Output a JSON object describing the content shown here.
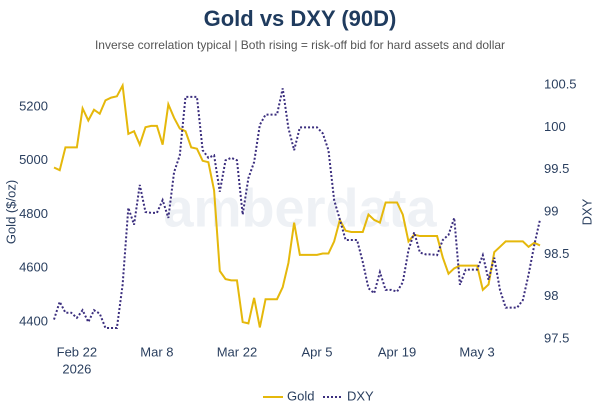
{
  "chart_data": {
    "type": "line",
    "title": "Gold vs DXY (90D)",
    "subtitle": "Inverse correlation typical | Both rising = risk-off bid for hard assets and dollar",
    "watermark": "amberdata",
    "y_label": "Gold ($/oz)",
    "y2_label": "DXY",
    "x": [
      "2026-02-18",
      "2026-02-19",
      "2026-02-20",
      "2026-02-21",
      "2026-02-22",
      "2026-02-23",
      "2026-02-24",
      "2026-02-25",
      "2026-02-26",
      "2026-02-27",
      "2026-02-28",
      "2026-03-01",
      "2026-03-02",
      "2026-03-03",
      "2026-03-04",
      "2026-03-05",
      "2026-03-06",
      "2026-03-07",
      "2026-03-08",
      "2026-03-09",
      "2026-03-10",
      "2026-03-11",
      "2026-03-12",
      "2026-03-13",
      "2026-03-14",
      "2026-03-15",
      "2026-03-16",
      "2026-03-17",
      "2026-03-18",
      "2026-03-19",
      "2026-03-20",
      "2026-03-21",
      "2026-03-22",
      "2026-03-23",
      "2026-03-24",
      "2026-03-25",
      "2026-03-26",
      "2026-03-27",
      "2026-03-28",
      "2026-03-29",
      "2026-03-30",
      "2026-03-31",
      "2026-04-01",
      "2026-04-02",
      "2026-04-03",
      "2026-04-04",
      "2026-04-05",
      "2026-04-06",
      "2026-04-07",
      "2026-04-08",
      "2026-04-09",
      "2026-04-10",
      "2026-04-11",
      "2026-04-12",
      "2026-04-13",
      "2026-04-14",
      "2026-04-15",
      "2026-04-16",
      "2026-04-17",
      "2026-04-18",
      "2026-04-19",
      "2026-04-20",
      "2026-04-21",
      "2026-04-22",
      "2026-04-23",
      "2026-04-24",
      "2026-04-25",
      "2026-04-26",
      "2026-04-27",
      "2026-04-28",
      "2026-04-29",
      "2026-04-30",
      "2026-05-01",
      "2026-05-02",
      "2026-05-03",
      "2026-05-04",
      "2026-05-05",
      "2026-05-06",
      "2026-05-07",
      "2026-05-08",
      "2026-05-09",
      "2026-05-10",
      "2026-05-11",
      "2026-05-12",
      "2026-05-13",
      "2026-05-14"
    ],
    "series": [
      {
        "name": "Gold",
        "color": "#e5b80b",
        "dash": "solid",
        "axis": "y",
        "values": [
          4975,
          4965,
          5050,
          5050,
          5050,
          5195,
          5150,
          5190,
          5175,
          5225,
          5235,
          5240,
          5280,
          5100,
          5110,
          5060,
          5125,
          5130,
          5130,
          5060,
          5210,
          5160,
          5120,
          5110,
          5050,
          5045,
          5000,
          4995,
          4890,
          4590,
          4560,
          4555,
          4555,
          4400,
          4395,
          4490,
          4380,
          4485,
          4485,
          4485,
          4530,
          4620,
          4770,
          4650,
          4650,
          4650,
          4650,
          4655,
          4655,
          4700,
          4780,
          4740,
          4735,
          4735,
          4735,
          4800,
          4780,
          4770,
          4845,
          4845,
          4845,
          4800,
          4700,
          4725,
          4720,
          4720,
          4720,
          4720,
          4640,
          4580,
          4600,
          4610,
          4610,
          4610,
          4610,
          4520,
          4540,
          4660,
          4680,
          4700,
          4700,
          4700,
          4700,
          4680,
          4695,
          4685
        ]
      },
      {
        "name": "DXY",
        "color": "#3b2e7e",
        "dash": "dot",
        "axis": "y2",
        "values": [
          97.73,
          97.94,
          97.81,
          97.81,
          97.75,
          97.84,
          97.7,
          97.84,
          97.8,
          97.63,
          97.63,
          97.63,
          98.14,
          99.05,
          98.85,
          99.32,
          99,
          98.99,
          98.99,
          99.14,
          98.93,
          99.47,
          99.67,
          100.36,
          100.36,
          100.36,
          99.73,
          99.64,
          99.67,
          99.24,
          99.61,
          99.64,
          99.61,
          98.97,
          99.4,
          99.59,
          100.03,
          100.15,
          100.15,
          100.15,
          100.46,
          99.99,
          99.73,
          100,
          100,
          100,
          100,
          99.93,
          99.73,
          99.14,
          98.91,
          98.67,
          98.67,
          98.67,
          98.41,
          98.1,
          98.04,
          98.29,
          98.08,
          98.08,
          98.06,
          98.17,
          98.55,
          98.76,
          98.52,
          98.5,
          98.5,
          98.49,
          98.67,
          98.73,
          98.93,
          98.14,
          98.32,
          98.32,
          98.32,
          98.49,
          98.2,
          98.46,
          98.08,
          97.87,
          97.87,
          97.87,
          97.96,
          98.26,
          98.61,
          98.91
        ]
      }
    ],
    "xlim": [
      "2026-02-18",
      "2026-05-14"
    ],
    "xticks": [
      {
        "value": "2026-02-22",
        "label": "Feb 22"
      },
      {
        "value": "2026-03-08",
        "label": "Mar 8"
      },
      {
        "value": "2026-03-22",
        "label": "Mar 22"
      },
      {
        "value": "2026-04-05",
        "label": "Apr 5"
      },
      {
        "value": "2026-04-19",
        "label": "Apr 19"
      },
      {
        "value": "2026-05-03",
        "label": "May 3"
      }
    ],
    "x_year": "2026",
    "ylim": [
      4337,
      5282
    ],
    "yticks": [
      4400,
      4600,
      4800,
      5000,
      5200
    ],
    "y2lim": [
      97.5,
      100.5
    ],
    "y2ticks": [
      97.5,
      98,
      98.5,
      99,
      99.5,
      100,
      100.5
    ],
    "grid": false,
    "legend": "bottom"
  }
}
